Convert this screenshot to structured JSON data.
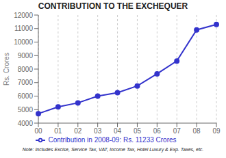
{
  "chart_data": {
    "type": "line",
    "title": "CONTRIBUTION TO THE EXCHEQUER",
    "y_label": "Rs. Crores",
    "note": "Note: Includes Excise, Service Tax, VAT, Income Tax, Hotel Luxury & Exp. Taxes, etc.",
    "categories": [
      "00",
      "01",
      "02",
      "03",
      "04",
      "05",
      "06",
      "07",
      "08",
      "09"
    ],
    "series": [
      {
        "name": "Contribution in 2008-09: Rs. 11233 Crores",
        "color": "#3333cc",
        "marker": "o",
        "values": [
          4700,
          5200,
          5500,
          6000,
          6250,
          6750,
          7650,
          8600,
          10900,
          11300
        ]
      }
    ],
    "ylim": [
      4000,
      12000
    ],
    "yticks": [
      4000,
      5000,
      6000,
      7000,
      8000,
      9000,
      10000,
      11000,
      12000
    ],
    "grid": "x",
    "legend": "bottom"
  }
}
